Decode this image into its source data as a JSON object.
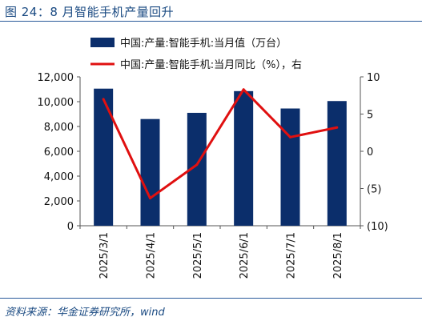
{
  "figure": {
    "title": "图 24：8 月智能手机产量回升",
    "source": "资料来源：华金证券研究所，wind"
  },
  "chart_data": {
    "type": "bar",
    "categories": [
      "2025/3/1",
      "2025/4/1",
      "2025/5/1",
      "2025/6/1",
      "2025/7/1",
      "2025/8/1"
    ],
    "series": [
      {
        "name": "中国:产量:智能手机:当月值（万台）",
        "type": "bar",
        "axis": "left",
        "color": "#0b2e6b",
        "values": [
          11050,
          8600,
          9100,
          10850,
          9450,
          10050
        ]
      },
      {
        "name": "中国:产量:智能手机:当月同比（%），右",
        "type": "line",
        "axis": "right",
        "color": "#e01010",
        "values": [
          7.0,
          -6.3,
          -1.8,
          8.3,
          1.9,
          3.2
        ]
      }
    ],
    "y_left": {
      "ylim": [
        0,
        12000
      ],
      "ticks": [
        "0",
        "2,000",
        "4,000",
        "6,000",
        "8,000",
        "10,000",
        "12,000"
      ]
    },
    "y_right": {
      "ylim": [
        -10,
        10
      ],
      "ticks": [
        "(10)",
        "(5)",
        "0",
        "5",
        "10"
      ]
    },
    "legend": "top",
    "grid": false
  }
}
